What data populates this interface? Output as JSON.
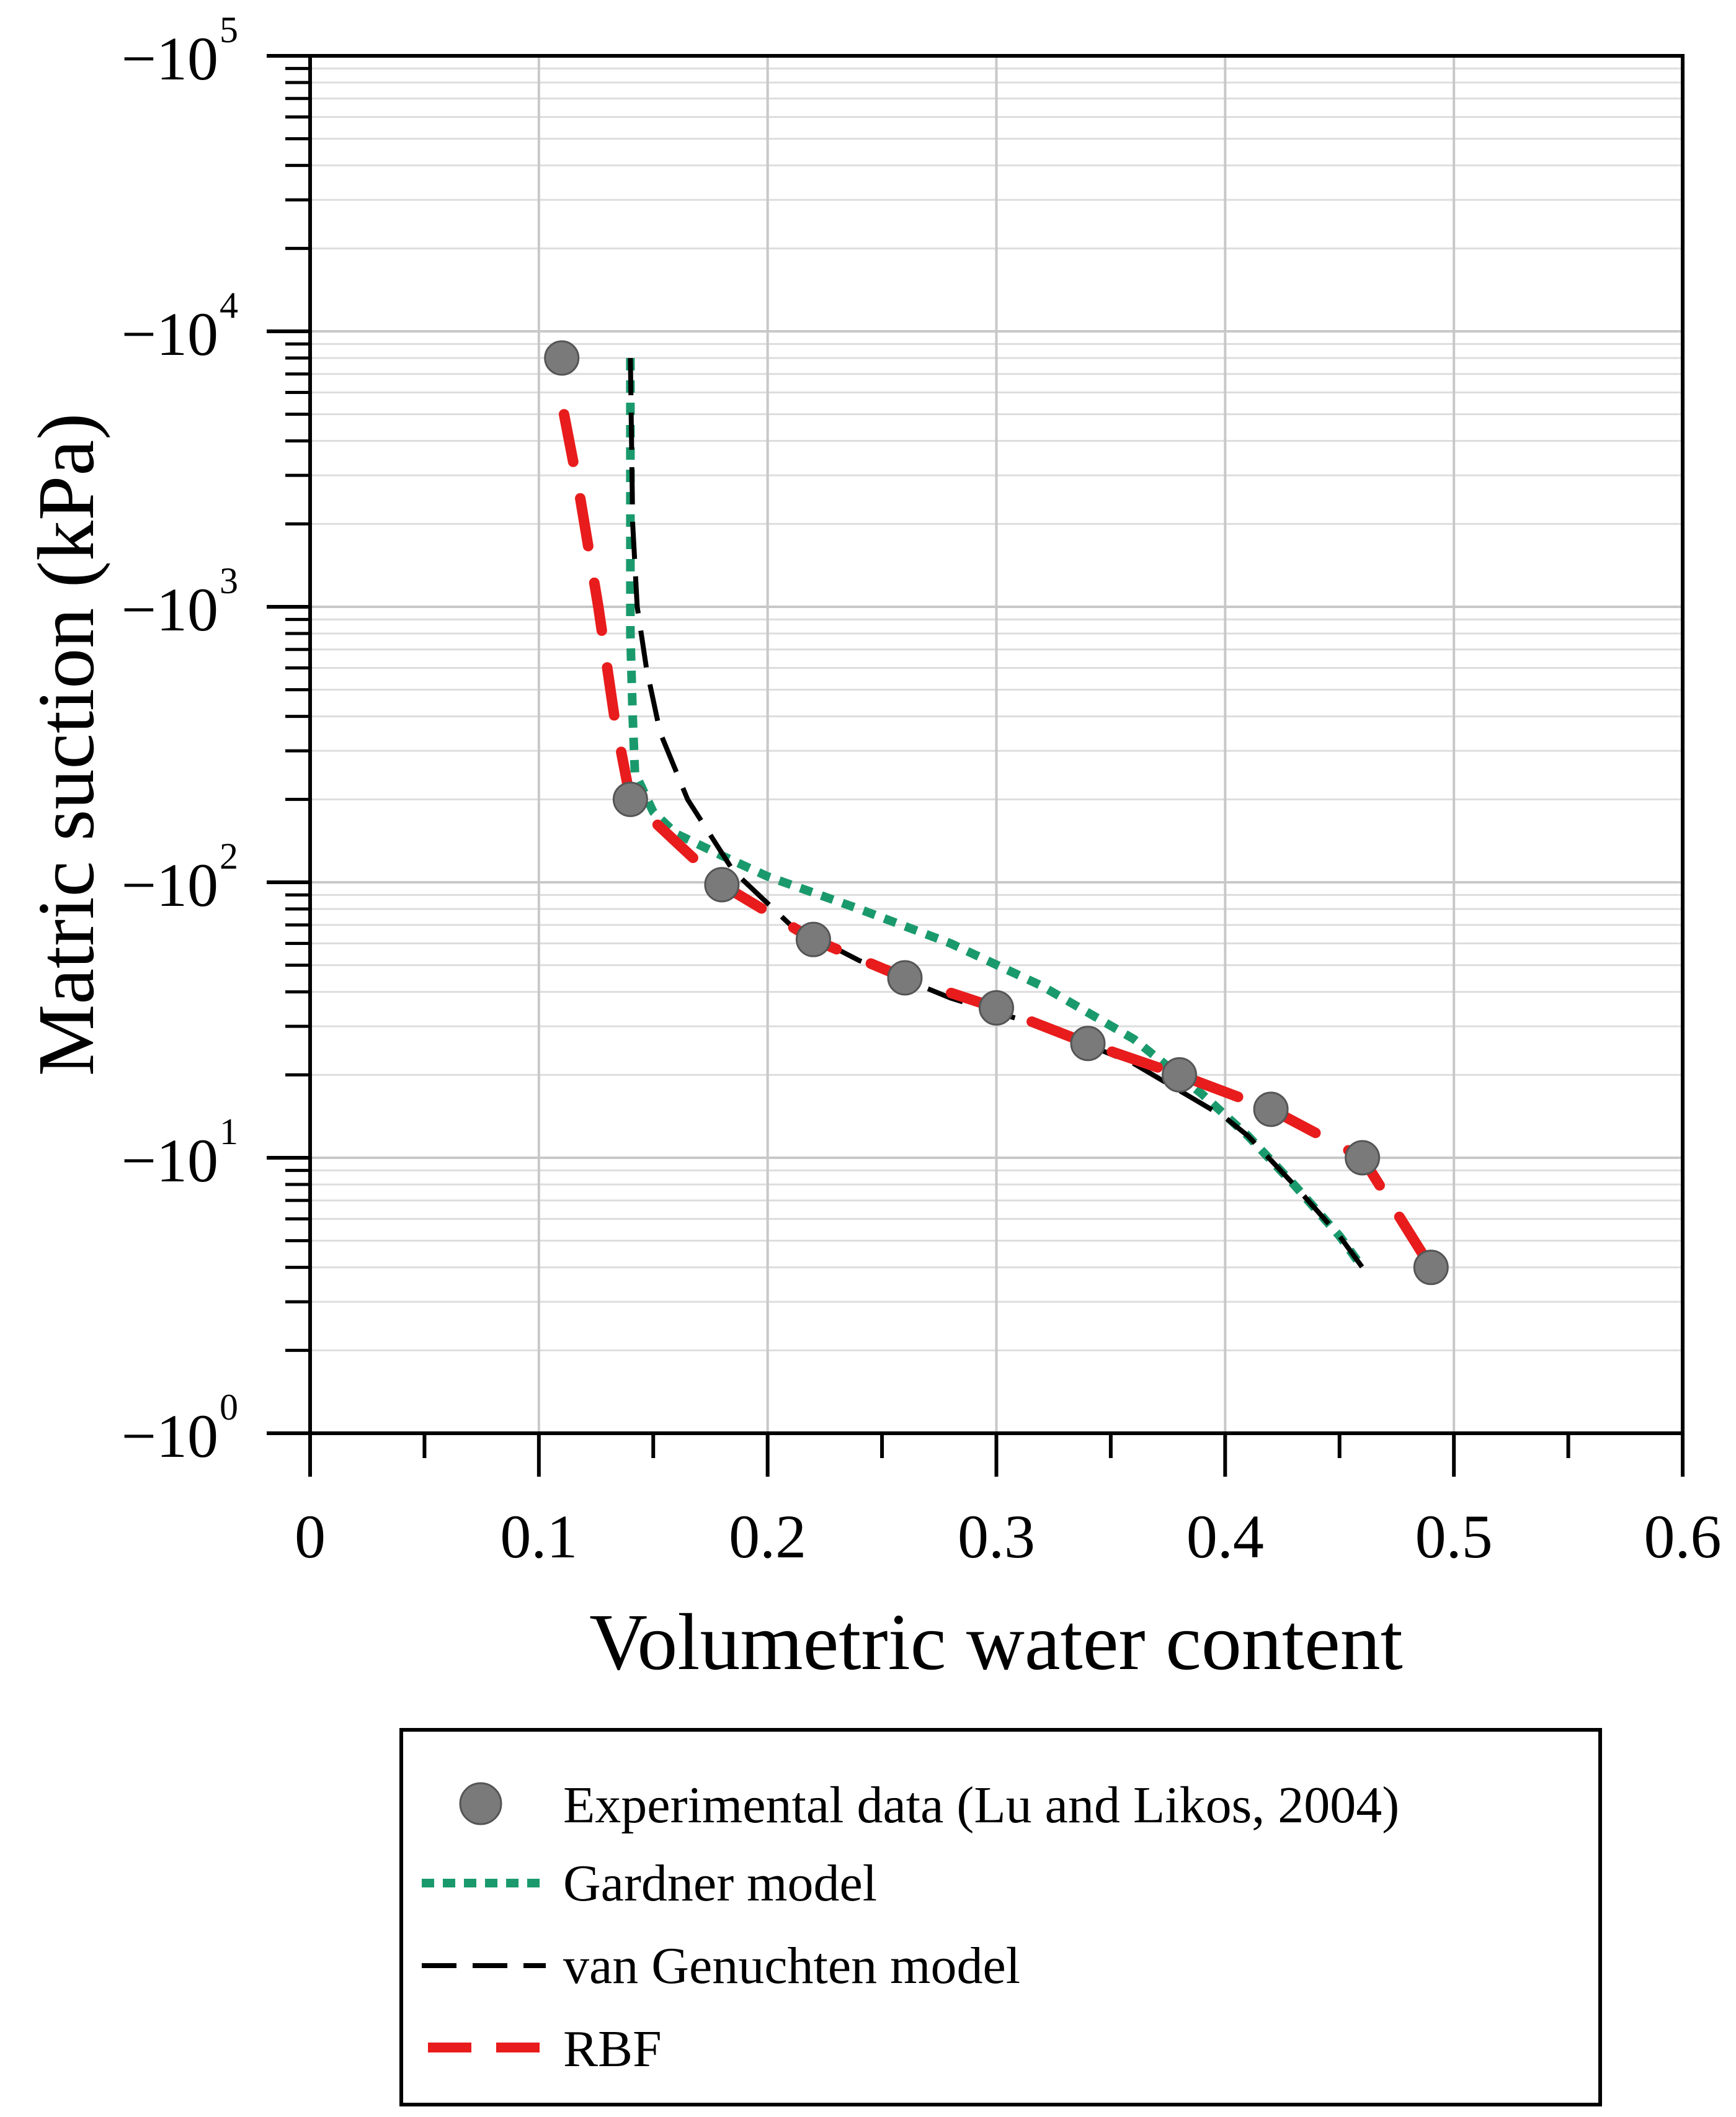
{
  "chart_data": {
    "type": "scatter",
    "title": "",
    "xlabel": "Volumetric water content",
    "ylabel": "Matric suction (kPa)",
    "xlim": [
      0,
      0.6
    ],
    "ylim_log10": [
      0,
      5
    ],
    "y_scale": "log",
    "grid": true,
    "x_ticks": [
      {
        "value": 0,
        "label": "0"
      },
      {
        "value": 0.1,
        "label": "0.1"
      },
      {
        "value": 0.2,
        "label": "0.2"
      },
      {
        "value": 0.3,
        "label": "0.3"
      },
      {
        "value": 0.4,
        "label": "0.4"
      },
      {
        "value": 0.5,
        "label": "0.5"
      },
      {
        "value": 0.6,
        "label": "0.6"
      }
    ],
    "y_ticks": [
      {
        "exp": 0,
        "base": "−10",
        "sup": "0"
      },
      {
        "exp": 1,
        "base": "−10",
        "sup": "1"
      },
      {
        "exp": 2,
        "base": "−10",
        "sup": "2"
      },
      {
        "exp": 3,
        "base": "−10",
        "sup": "3"
      },
      {
        "exp": 4,
        "base": "−10",
        "sup": "4"
      },
      {
        "exp": 5,
        "base": "−10",
        "sup": "5"
      }
    ],
    "legend_position": "bottom, below chart",
    "series": [
      {
        "name": "Experimental data (Lu and Likos, 2004)",
        "kind": "markers",
        "color": "#7a7a7a",
        "x": [
          0.11,
          0.14,
          0.18,
          0.22,
          0.26,
          0.3,
          0.34,
          0.38,
          0.42,
          0.46,
          0.49
        ],
        "y": [
          8000,
          200,
          98,
          62,
          45,
          35,
          26,
          20,
          15,
          10,
          4
        ]
      },
      {
        "name": "Gardner model",
        "kind": "dotted",
        "color": "#1a9a6c",
        "x": [
          0.14,
          0.14,
          0.14,
          0.141,
          0.142,
          0.15,
          0.16,
          0.18,
          0.2,
          0.24,
          0.28,
          0.32,
          0.36,
          0.39,
          0.41,
          0.43,
          0.45,
          0.46
        ],
        "y": [
          8000,
          2000,
          800,
          400,
          250,
          180,
          150,
          125,
          105,
          80,
          60,
          42,
          27,
          17,
          12,
          8,
          5.2,
          4
        ]
      },
      {
        "name": "van Genuchten model",
        "kind": "dashed",
        "color": "#000000",
        "x": [
          0.14,
          0.141,
          0.143,
          0.147,
          0.153,
          0.165,
          0.185,
          0.21,
          0.24,
          0.28,
          0.32,
          0.36,
          0.4,
          0.41,
          0.43,
          0.45,
          0.46
        ],
        "y": [
          8000,
          2000,
          1000,
          600,
          350,
          200,
          110,
          70,
          52,
          38,
          30,
          22,
          14,
          12,
          8,
          5.2,
          4
        ]
      },
      {
        "name": "RBF",
        "kind": "long-dashed",
        "color": "#e81c1c",
        "x": [
          0.111,
          0.118,
          0.126,
          0.133,
          0.14,
          0.16,
          0.18,
          0.22,
          0.26,
          0.3,
          0.34,
          0.38,
          0.42,
          0.46,
          0.49
        ],
        "y": [
          5000,
          2500,
          1000,
          400,
          200,
          140,
          98,
          62,
          45,
          35,
          26,
          20,
          15,
          10,
          4
        ]
      }
    ]
  }
}
